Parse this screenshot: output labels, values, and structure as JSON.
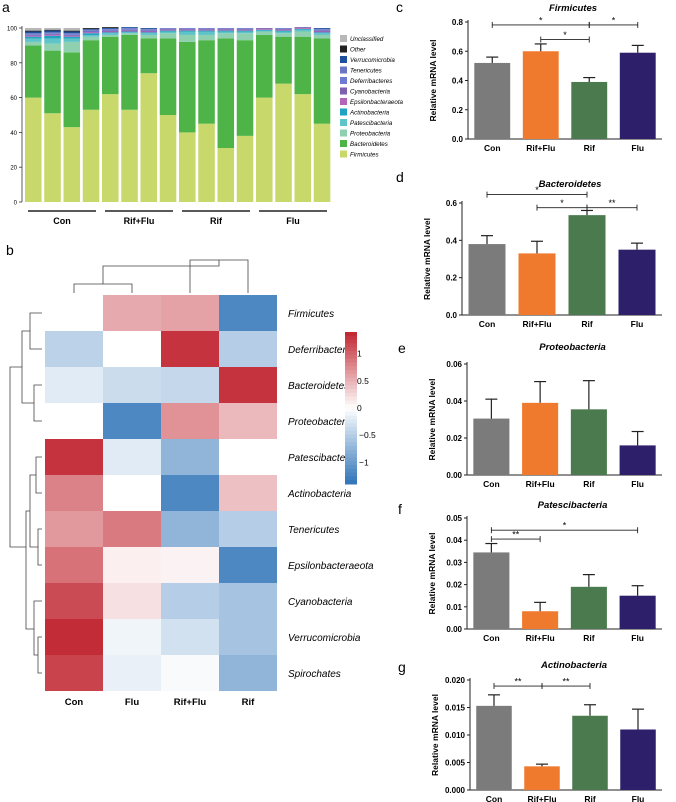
{
  "panel_letters": {
    "a": "a",
    "b": "b",
    "c": "c",
    "d": "d",
    "e": "e",
    "f": "f",
    "g": "g"
  },
  "colors": {
    "Firmicutes": "#c9d86a",
    "Bacteroidetes": "#4fb448",
    "Proteobacteria": "#8fd0b0",
    "Patescibacteria": "#5ec4c8",
    "Actinobacteria": "#1fa3c0",
    "Epsilonbacteraeota": "#b266b8",
    "Cyanobacteria": "#7b61b0",
    "Deferribacteres": "#6d7bd2",
    "Tenericutes": "#6a78c4",
    "Verrucomicrobia": "#1e4f9c",
    "Other": "#222222",
    "Unclassified": "#b8b8b8",
    "bar_con": "#7b7b7b",
    "bar_rifflu": "#ef7a2e",
    "bar_rif": "#4a7a4e",
    "bar_flu": "#2e1f6b",
    "heat_low": "#2f74b8",
    "heat_mid": "#ffffff",
    "heat_high": "#c0242f"
  },
  "chart_data": [
    {
      "id": "a",
      "type": "bar",
      "stacked": true,
      "ylim": [
        0,
        100
      ],
      "yticks": [
        "0",
        "20",
        "40",
        "60",
        "80",
        "100"
      ],
      "groups": [
        "Con",
        "Rif+Flu",
        "Rif",
        "Flu"
      ],
      "legend": [
        "Unclassified",
        "Other",
        "Verrucomicrobia",
        "Tenericutes",
        "Deferribacteres",
        "Cyanobacteria",
        "Epsilonbacteraeota",
        "Actinobacteria",
        "Patescibacteria",
        "Proteobacteria",
        "Bacteroidetes",
        "Firmicutes"
      ],
      "stack_order": [
        "Firmicutes",
        "Bacteroidetes",
        "Proteobacteria",
        "Patescibacteria",
        "Actinobacteria",
        "Epsilonbacteraeota",
        "Cyanobacteria",
        "Deferribacteres",
        "Tenericutes",
        "Verrucomicrobia",
        "Other",
        "Unclassified"
      ],
      "samples": [
        {
          "group": "Con",
          "values": [
            60,
            30,
            2,
            2,
            1,
            0.5,
            0.5,
            0.5,
            0.5,
            1,
            0.5,
            1.5
          ]
        },
        {
          "group": "Con",
          "values": [
            51,
            36,
            4,
            3,
            1.5,
            0.5,
            0.5,
            0.5,
            0.5,
            1,
            0.5,
            1
          ]
        },
        {
          "group": "Con",
          "values": [
            43,
            43,
            6,
            2,
            1,
            0.5,
            0.5,
            0.5,
            0.5,
            1,
            0.5,
            1.5
          ]
        },
        {
          "group": "Con",
          "values": [
            53,
            40,
            2,
            1,
            1,
            0.5,
            0.5,
            0.5,
            0.5,
            0.5,
            0.5,
            0
          ]
        },
        {
          "group": "Rif+Flu",
          "values": [
            62,
            33,
            1,
            1,
            0.5,
            0.5,
            0.5,
            0.5,
            0.5,
            0.5,
            0.5,
            0
          ]
        },
        {
          "group": "Rif+Flu",
          "values": [
            53,
            43,
            1,
            0.5,
            0.5,
            0.5,
            0.5,
            0.5,
            0.5,
            0.5,
            0,
            0
          ]
        },
        {
          "group": "Rif+Flu",
          "values": [
            74,
            20,
            2,
            1,
            0.5,
            0.5,
            0.5,
            0.5,
            0.5,
            0.5,
            0,
            0
          ]
        },
        {
          "group": "Rif+Flu",
          "values": [
            50,
            44,
            3,
            1,
            0.5,
            0.5,
            0.5,
            0.5,
            0,
            0,
            0,
            0
          ]
        },
        {
          "group": "Rif",
          "values": [
            40,
            52,
            4,
            2,
            0.5,
            0.5,
            0.5,
            0.5,
            0,
            0,
            0,
            0
          ]
        },
        {
          "group": "Rif",
          "values": [
            45,
            48,
            3,
            2,
            0.5,
            0.5,
            0.5,
            0.5,
            0,
            0,
            0,
            0
          ]
        },
        {
          "group": "Rif",
          "values": [
            31,
            63,
            3,
            1,
            0.5,
            0.5,
            0.5,
            0.5,
            0,
            0,
            0,
            0
          ]
        },
        {
          "group": "Rif",
          "values": [
            38,
            55,
            4,
            1,
            0.5,
            0.5,
            0.5,
            0.5,
            0,
            0,
            0,
            0
          ]
        },
        {
          "group": "Flu",
          "values": [
            60,
            36,
            2,
            0.5,
            0.5,
            0.5,
            0.5,
            0,
            0,
            0,
            0,
            0
          ]
        },
        {
          "group": "Flu",
          "values": [
            68,
            27,
            2,
            1,
            0.5,
            0.5,
            0.5,
            0.5,
            0,
            0,
            0,
            0
          ]
        },
        {
          "group": "Flu",
          "values": [
            62,
            33,
            3,
            1,
            0.5,
            0.5,
            0.5,
            0,
            0,
            0,
            0,
            0
          ]
        },
        {
          "group": "Flu",
          "values": [
            45,
            49,
            2,
            1,
            0.5,
            0.5,
            0.5,
            0.5,
            0.5,
            0.5,
            0,
            0
          ]
        }
      ]
    },
    {
      "id": "b",
      "type": "heatmap",
      "columns": [
        "Con",
        "Flu",
        "Rif+Flu",
        "Rif"
      ],
      "rows": [
        "Firmicutes",
        "Deferribacteres",
        "Bacteroidetes",
        "Proteobacteria",
        "Patescibacteria",
        "Actinobacteria",
        "Tenericutes",
        "Epsilonbacteraeota",
        "Cyanobacteria",
        "Verrucomicrobia",
        "Spirochates"
      ],
      "values": [
        [
          0,
          0.55,
          0.6,
          -1.2
        ],
        [
          -0.45,
          0,
          1.3,
          -0.5
        ],
        [
          -0.2,
          -0.35,
          -0.4,
          1.3
        ],
        [
          0,
          -1.2,
          0.7,
          0.45
        ],
        [
          1.3,
          -0.2,
          -0.75,
          0
        ],
        [
          0.8,
          0,
          -1.2,
          0.4
        ],
        [
          0.65,
          0.85,
          -0.75,
          -0.5
        ],
        [
          0.9,
          0.1,
          0.08,
          -1.2
        ],
        [
          1.15,
          0.2,
          -0.5,
          -0.6
        ],
        [
          1.35,
          -0.1,
          -0.3,
          -0.6
        ],
        [
          1.2,
          -0.15,
          -0.05,
          -0.75
        ]
      ],
      "colorbar": {
        "range": [
          -1.4,
          1.4
        ],
        "ticks": [
          "1",
          "0.5",
          "0",
          "−0.5",
          "−1"
        ],
        "tick_values": [
          1,
          0.5,
          0,
          -0.5,
          -1
        ]
      }
    },
    {
      "id": "c",
      "type": "bar",
      "title": "Firmicutes",
      "ylabel": "Relative mRNA level",
      "categories": [
        "Con",
        "Rif+Flu",
        "Rif",
        "Flu"
      ],
      "values": [
        0.52,
        0.6,
        0.39,
        0.59
      ],
      "errors": [
        0.04,
        0.05,
        0.03,
        0.05
      ],
      "ylim": [
        0,
        0.8
      ],
      "yticks": [
        "0.0",
        "0.2",
        "0.4",
        "0.6",
        "0.8"
      ],
      "sig": [
        {
          "from": 0,
          "to": 2,
          "level": 0.78,
          "label": "*"
        },
        {
          "from": 2,
          "to": 3,
          "level": 0.78,
          "label": "*"
        },
        {
          "from": 1,
          "to": 2,
          "level": 0.68,
          "label": "*"
        }
      ]
    },
    {
      "id": "d",
      "type": "bar",
      "title": "Bacteroidetes",
      "ylabel": "Relative mRNA level",
      "categories": [
        "Con",
        "Rif+Flu",
        "Rif",
        "Flu"
      ],
      "values": [
        0.38,
        0.33,
        0.535,
        0.35
      ],
      "errors": [
        0.045,
        0.065,
        0.025,
        0.035
      ],
      "ylim": [
        0,
        0.6
      ],
      "yticks": [
        "0.0",
        "0.2",
        "0.4",
        "0.6"
      ],
      "sig": [
        {
          "from": 0,
          "to": 2,
          "level": 0.645,
          "label": "*"
        },
        {
          "from": 1,
          "to": 2,
          "level": 0.575,
          "label": "*"
        },
        {
          "from": 2,
          "to": 3,
          "level": 0.575,
          "label": "**"
        }
      ]
    },
    {
      "id": "e",
      "type": "bar",
      "title": "Proteobacteria",
      "ylabel": "Relative mRNA level",
      "categories": [
        "Con",
        "Rif+Flu",
        "Rif",
        "Flu"
      ],
      "values": [
        0.0305,
        0.039,
        0.0355,
        0.016
      ],
      "errors": [
        0.0105,
        0.0115,
        0.0155,
        0.0075
      ],
      "ylim": [
        0,
        0.06
      ],
      "yticks": [
        "0.00",
        "0.02",
        "0.04",
        "0.06"
      ],
      "sig": []
    },
    {
      "id": "f",
      "type": "bar",
      "title": "Patescibacteria",
      "ylabel": "Relative mRNA level",
      "categories": [
        "Con",
        "Rif+Flu",
        "Rif",
        "Flu"
      ],
      "values": [
        0.0345,
        0.008,
        0.019,
        0.015
      ],
      "errors": [
        0.004,
        0.004,
        0.0055,
        0.0045
      ],
      "ylim": [
        0,
        0.05
      ],
      "yticks": [
        "0.00",
        "0.01",
        "0.02",
        "0.03",
        "0.04",
        "0.05"
      ],
      "sig": [
        {
          "from": 0,
          "to": 3,
          "level": 0.0445,
          "label": "*"
        },
        {
          "from": 0,
          "to": 1,
          "level": 0.0405,
          "label": "**"
        }
      ]
    },
    {
      "id": "g",
      "type": "bar",
      "title": "Actinobacteria",
      "ylabel": "Relative mRNA level",
      "categories": [
        "Con",
        "Rif+Flu",
        "Rif",
        "Flu"
      ],
      "values": [
        0.0153,
        0.0043,
        0.0135,
        0.011
      ],
      "errors": [
        0.002,
        0.0004,
        0.002,
        0.0037
      ],
      "ylim": [
        0,
        0.02
      ],
      "yticks": [
        "0.000",
        "0.005",
        "0.010",
        "0.015",
        "0.020"
      ],
      "sig": [
        {
          "from": 0,
          "to": 1,
          "level": 0.0189,
          "label": "**"
        },
        {
          "from": 1,
          "to": 2,
          "level": 0.0189,
          "label": "**"
        }
      ]
    }
  ]
}
